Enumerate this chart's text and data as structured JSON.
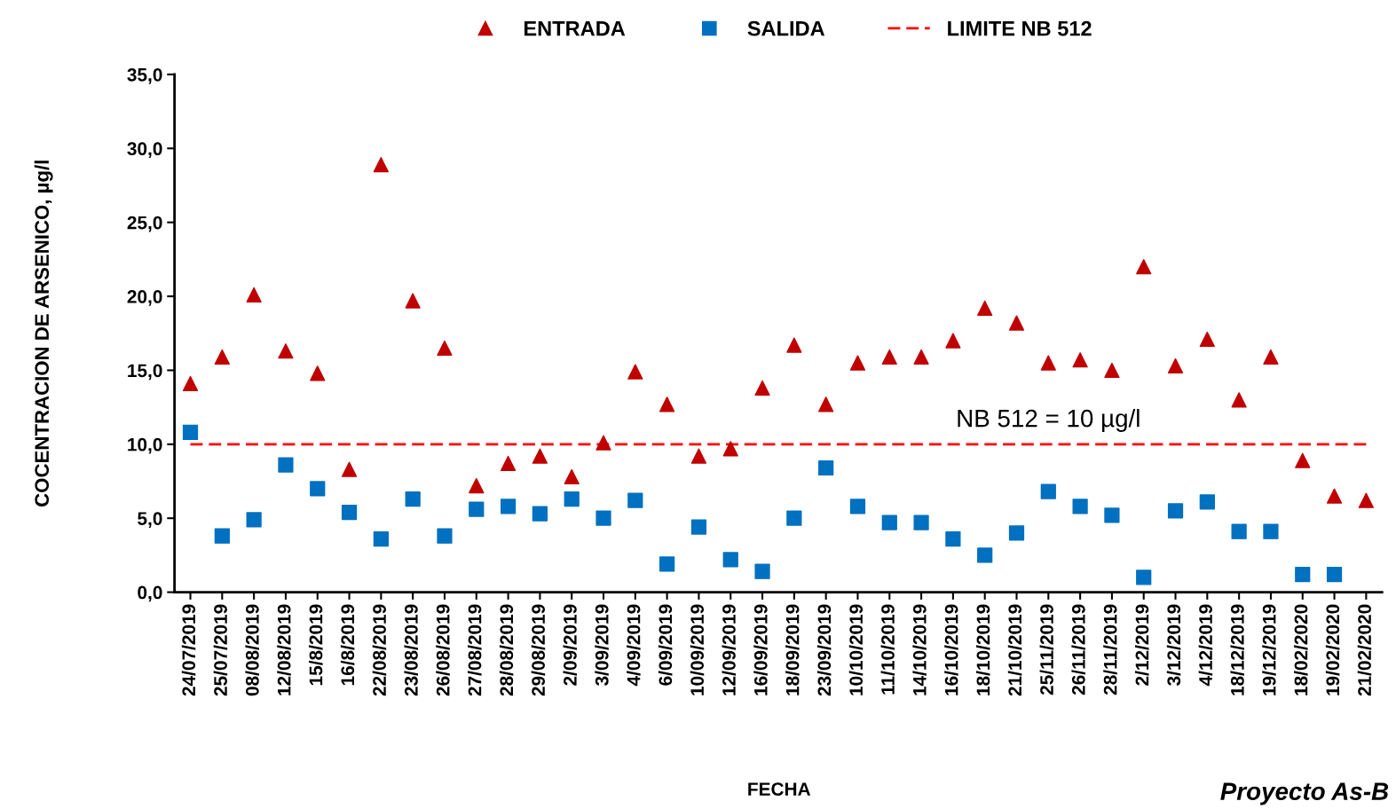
{
  "chart_data": {
    "type": "scatter",
    "xlabel": "FECHA",
    "ylabel": "COCENTRACION DE ARSENICO, µg/l",
    "categories": [
      "24/07/2019",
      "25/07/2019",
      "08/08/2019",
      "12/08/2019",
      "15/8/2019",
      "16/8/2019",
      "22/08/2019",
      "23/08/2019",
      "26/08/2019",
      "27/08/2019",
      "28/08/2019",
      "29/08/2019",
      "2/09/2019",
      "3/09/2019",
      "4/09/2019",
      "6/09/2019",
      "10/09/2019",
      "12/09/2019",
      "16/09/2019",
      "18/09/2019",
      "23/09/2019",
      "10/10/2019",
      "11/10/2019",
      "14/10/2019",
      "16/10/2019",
      "18/10/2019",
      "21/10/2019",
      "25/11/2019",
      "26/11/2019",
      "28/11/2019",
      "2/12/2019",
      "3/12/2019",
      "4/12/2019",
      "18/12/2019",
      "19/12/2019",
      "18/02/2020",
      "19/02/2020",
      "21/02/2020"
    ],
    "series": [
      {
        "name": "ENTRADA",
        "color": "#c00000",
        "marker": "triangle",
        "values": [
          14.1,
          15.9,
          20.1,
          16.3,
          14.8,
          8.3,
          28.9,
          19.7,
          16.5,
          7.2,
          8.7,
          9.2,
          7.8,
          10.1,
          14.9,
          12.7,
          9.2,
          9.7,
          13.8,
          16.7,
          12.7,
          15.5,
          15.9,
          15.9,
          17.0,
          19.2,
          18.2,
          15.5,
          15.7,
          15.0,
          22.0,
          15.3,
          17.1,
          13.0,
          15.9,
          8.9,
          6.5,
          6.2
        ]
      },
      {
        "name": "SALIDA",
        "color": "#0070c0",
        "marker": "square",
        "values": [
          10.8,
          3.8,
          4.9,
          8.6,
          7.0,
          5.4,
          3.6,
          6.3,
          3.8,
          5.6,
          5.8,
          5.3,
          6.3,
          5.0,
          6.2,
          1.9,
          4.4,
          2.2,
          1.4,
          5.0,
          8.4,
          5.8,
          4.7,
          4.7,
          3.6,
          2.5,
          4.0,
          6.8,
          5.8,
          5.2,
          1.0,
          5.5,
          6.1,
          4.1,
          4.1,
          1.2,
          1.2,
          null
        ]
      },
      {
        "name": "LIMITE NB 512",
        "type": "line",
        "color": "#ff0000",
        "marker": "none",
        "line_style": "dashed",
        "values": [
          10,
          10,
          10,
          10,
          10,
          10,
          10,
          10,
          10,
          10,
          10,
          10,
          10,
          10,
          10,
          10,
          10,
          10,
          10,
          10,
          10,
          10,
          10,
          10,
          10,
          10,
          10,
          10,
          10,
          10,
          10,
          10,
          10,
          10,
          10,
          10,
          10,
          10
        ]
      }
    ],
    "ylim": [
      0,
      35
    ],
    "yticks": [
      {
        "value": 0,
        "label": "0,0"
      },
      {
        "value": 5,
        "label": "5,0"
      },
      {
        "value": 10,
        "label": "10,0"
      },
      {
        "value": 15,
        "label": "15,0"
      },
      {
        "value": 20,
        "label": "20,0"
      },
      {
        "value": 25,
        "label": "25,0"
      },
      {
        "value": 30,
        "label": "30,0"
      },
      {
        "value": 35,
        "label": "35,0"
      }
    ],
    "annotations": [
      {
        "text": "NB 512 = 10 µg/l",
        "x": "25/11/2019",
        "y": 10
      },
      "Proyecto As-B"
    ],
    "grid": false,
    "legend": "top"
  }
}
